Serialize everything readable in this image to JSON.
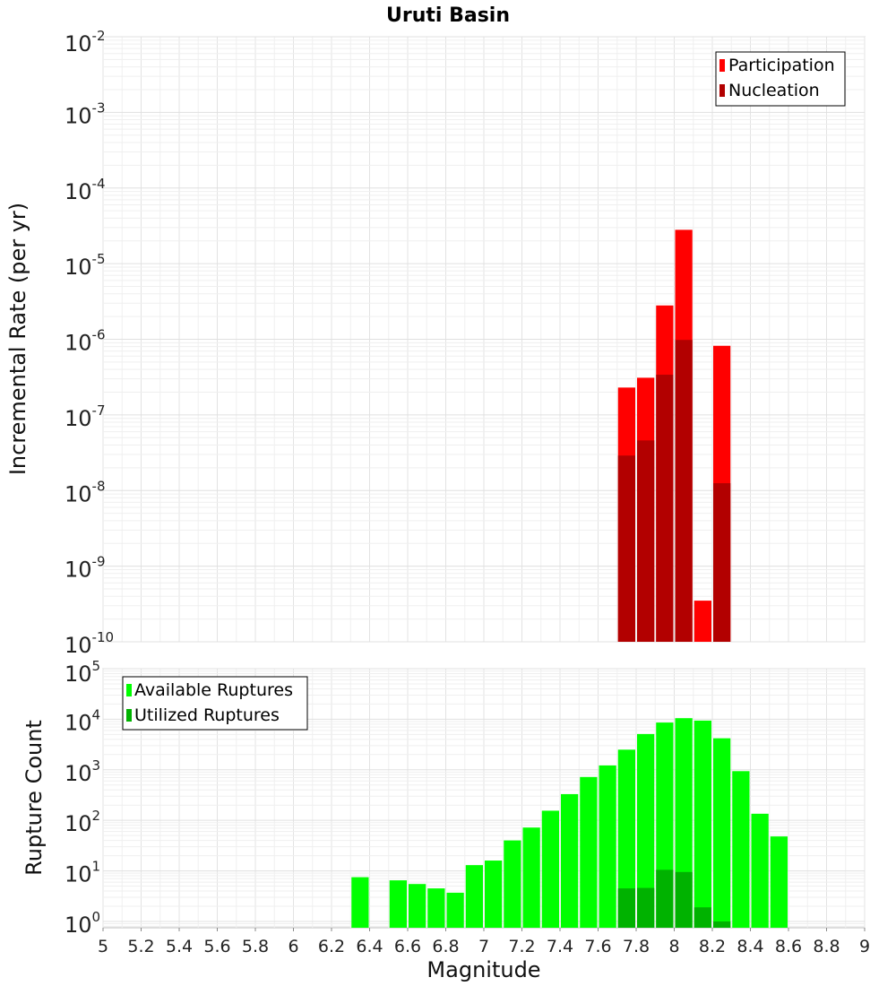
{
  "chart_data": [
    {
      "type": "bar",
      "title": "Uruti Basin",
      "ylabel": "Incremental Rate (per yr)",
      "xlabel": "",
      "yscale": "log",
      "xlim": [
        5,
        9
      ],
      "ylim": [
        1e-10,
        0.01
      ],
      "grid": true,
      "legend_position": "top-right",
      "bar_width": 0.1,
      "y_ticks": [
        {
          "base": "10",
          "exp": "-2",
          "value": 0.01
        },
        {
          "base": "10",
          "exp": "-3",
          "value": 0.001
        },
        {
          "base": "10",
          "exp": "-4",
          "value": 0.0001
        },
        {
          "base": "10",
          "exp": "-5",
          "value": 1e-05
        },
        {
          "base": "10",
          "exp": "-6",
          "value": 1e-06
        },
        {
          "base": "10",
          "exp": "-7",
          "value": 1e-07
        },
        {
          "base": "10",
          "exp": "-8",
          "value": 1e-08
        },
        {
          "base": "10",
          "exp": "-9",
          "value": 1e-09
        },
        {
          "base": "10",
          "exp": "-10",
          "value": 1e-10
        }
      ],
      "series": [
        {
          "name": "Participation",
          "color": "#ff0000",
          "points": [
            [
              7.75,
              2.3e-07
            ],
            [
              7.85,
              3.1e-07
            ],
            [
              7.95,
              2.8e-06
            ],
            [
              8.05,
              2.8e-05
            ],
            [
              8.15,
              3.5e-10
            ],
            [
              8.25,
              8.2e-07
            ]
          ]
        },
        {
          "name": "Nucleation",
          "color": "#b20000",
          "points": [
            [
              7.75,
              2.9e-08
            ],
            [
              7.85,
              4.6e-08
            ],
            [
              7.95,
              3.4e-07
            ],
            [
              8.05,
              9.8e-07
            ],
            [
              8.25,
              1.25e-08
            ]
          ]
        }
      ]
    },
    {
      "type": "bar",
      "title": "",
      "ylabel": "Rupture Count",
      "xlabel": "Magnitude",
      "yscale": "log",
      "xlim": [
        5,
        9
      ],
      "ylim": [
        0.75,
        100000.0
      ],
      "grid": true,
      "legend_position": "top-left",
      "bar_width": 0.1,
      "x_ticks": [
        "5",
        "5.2",
        "5.4",
        "5.6",
        "5.8",
        "6",
        "6.2",
        "6.4",
        "6.6",
        "6.8",
        "7",
        "7.2",
        "7.4",
        "7.6",
        "7.8",
        "8",
        "8.2",
        "8.4",
        "8.6",
        "8.8",
        "9"
      ],
      "y_ticks": [
        {
          "base": "10",
          "exp": "5",
          "value": 100000.0
        },
        {
          "base": "10",
          "exp": "4",
          "value": 10000.0
        },
        {
          "base": "10",
          "exp": "3",
          "value": 1000.0
        },
        {
          "base": "10",
          "exp": "2",
          "value": 100.0
        },
        {
          "base": "10",
          "exp": "1",
          "value": 10.0
        },
        {
          "base": "10",
          "exp": "0",
          "value": 1.0
        }
      ],
      "series": [
        {
          "name": "Available Ruptures",
          "color": "#00ff00",
          "points": [
            [
              6.35,
              7.5
            ],
            [
              6.55,
              6.5
            ],
            [
              6.65,
              5.5
            ],
            [
              6.75,
              4.5
            ],
            [
              6.85,
              3.7
            ],
            [
              6.95,
              13
            ],
            [
              7.05,
              16
            ],
            [
              7.15,
              40
            ],
            [
              7.25,
              72
            ],
            [
              7.35,
              155
            ],
            [
              7.45,
              330
            ],
            [
              7.55,
              720
            ],
            [
              7.65,
              1220
            ],
            [
              7.75,
              2500
            ],
            [
              7.85,
              5100
            ],
            [
              7.95,
              8600
            ],
            [
              8.05,
              10500
            ],
            [
              8.15,
              9400
            ],
            [
              8.25,
              4200
            ],
            [
              8.35,
              940
            ],
            [
              8.45,
              135
            ],
            [
              8.55,
              48
            ]
          ]
        },
        {
          "name": "Utilized Ruptures",
          "color": "#00b200",
          "points": [
            [
              7.75,
              4.5
            ],
            [
              7.85,
              4.6
            ],
            [
              7.95,
              10.5
            ],
            [
              8.05,
              9.5
            ],
            [
              8.15,
              1.9
            ],
            [
              8.25,
              1.0
            ]
          ]
        }
      ]
    }
  ]
}
